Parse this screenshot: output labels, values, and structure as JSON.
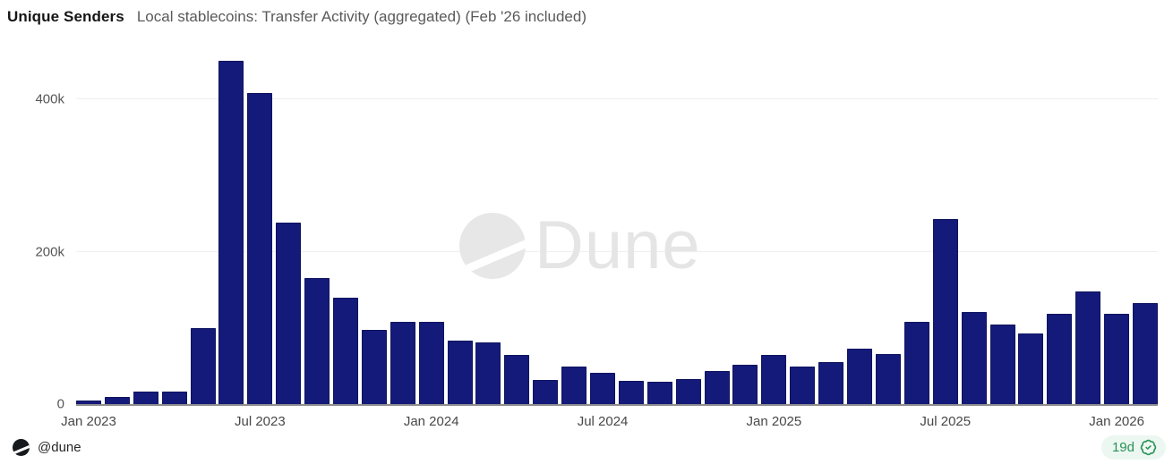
{
  "header": {
    "metric_label": "Unique Senders",
    "chart_title": "Local stablecoins: Transfer Activity (aggregated) (Feb '26 included)"
  },
  "chart_data": {
    "type": "bar",
    "title": "Local stablecoins: Transfer Activity (aggregated) (Feb '26 included)",
    "metric": "Unique Senders",
    "x": [
      "Jan 2023",
      "Feb 2023",
      "Mar 2023",
      "Apr 2023",
      "May 2023",
      "Jun 2023",
      "Jul 2023",
      "Aug 2023",
      "Sep 2023",
      "Oct 2023",
      "Nov 2023",
      "Dec 2023",
      "Jan 2024",
      "Feb 2024",
      "Mar 2024",
      "Apr 2024",
      "May 2024",
      "Jun 2024",
      "Jul 2024",
      "Aug 2024",
      "Sep 2024",
      "Oct 2024",
      "Nov 2024",
      "Dec 2024",
      "Jan 2025",
      "Feb 2025",
      "Mar 2025",
      "Apr 2025",
      "May 2025",
      "Jun 2025",
      "Jul 2025",
      "Aug 2025",
      "Sep 2025",
      "Oct 2025",
      "Nov 2025",
      "Dec 2025",
      "Jan 2026",
      "Feb 2026"
    ],
    "values": [
      5000,
      9000,
      16000,
      16000,
      100000,
      450000,
      408000,
      238000,
      165000,
      140000,
      98000,
      108000,
      108000,
      83000,
      81000,
      65000,
      32000,
      49000,
      41000,
      30000,
      29000,
      33000,
      43000,
      52000,
      64000,
      49000,
      55000,
      73000,
      66000,
      108000,
      243000,
      121000,
      104000,
      93000,
      118000,
      148000,
      119000,
      133000
    ],
    "y_axis": {
      "ticks": [
        {
          "label": "0",
          "value": 0
        },
        {
          "label": "200k",
          "value": 200000
        },
        {
          "label": "400k",
          "value": 400000
        }
      ],
      "max": 465000
    },
    "x_axis": {
      "labeled_ticks": [
        {
          "label": "Jan 2023",
          "index": 0
        },
        {
          "label": "Jul 2023",
          "index": 6
        },
        {
          "label": "Jan 2024",
          "index": 12
        },
        {
          "label": "Jul 2024",
          "index": 18
        },
        {
          "label": "Jan 2025",
          "index": 24
        },
        {
          "label": "Jul 2025",
          "index": 30
        },
        {
          "label": "Jan 2026",
          "index": 36
        }
      ]
    },
    "grid": "horizontal",
    "legend_position": "none",
    "bar_color": "#141a79",
    "watermark_text": "Dune"
  },
  "footer": {
    "account_handle": "@dune",
    "freshness_badge_label": "19d"
  },
  "colors": {
    "bar_fill": "#141a79",
    "bar_border": "#10155e",
    "gridline": "#efefef",
    "axis_line": "#8f8f8f",
    "tick_text": "#555555",
    "title_text": "#161616",
    "subtitle_text": "#5a5a5a",
    "watermark": "#e5e5e5",
    "badge_bg": "#edf7f1",
    "badge_green": "#279257"
  },
  "icons": {
    "dune_logo": "circle-with-diagonal-slash",
    "watermark_logo": "circle-with-diagonal-slash",
    "badge_icon": "verified-seal-check"
  }
}
